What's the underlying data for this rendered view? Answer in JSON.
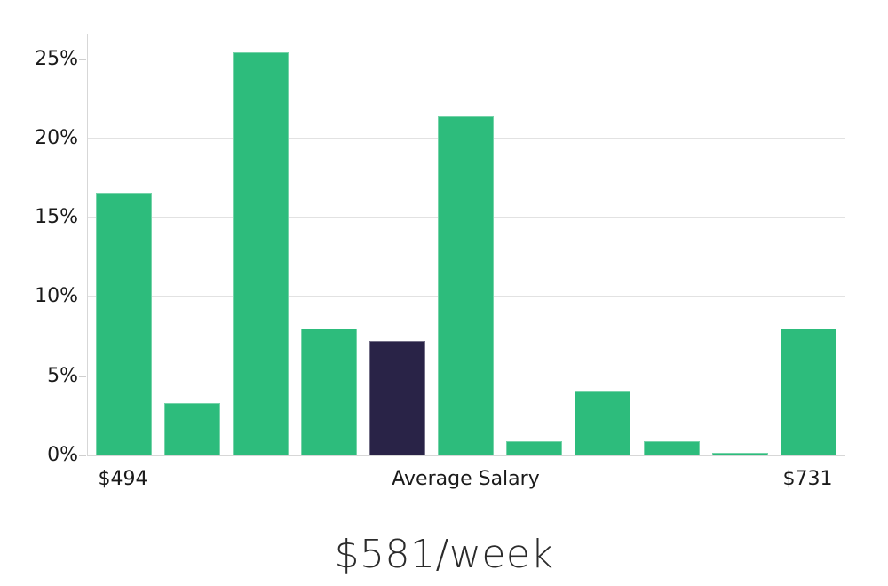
{
  "chart_data": {
    "type": "bar",
    "subtype": "histogram",
    "title": "$581/week",
    "xlabel": "",
    "ylabel": "",
    "grid": "horizontal",
    "legend": "none",
    "ylim": [
      0,
      26.6
    ],
    "yticks": [
      {
        "value": 0,
        "label": "0%"
      },
      {
        "value": 5,
        "label": "5%"
      },
      {
        "value": 10,
        "label": "10%"
      },
      {
        "value": 15,
        "label": "15%"
      },
      {
        "value": 20,
        "label": "20%"
      },
      {
        "value": 25,
        "label": "25%"
      }
    ],
    "xticks": [
      {
        "position": 0.0475,
        "label": "$494"
      },
      {
        "position": 0.5,
        "label": "Average Salary"
      },
      {
        "position": 0.9514,
        "label": "$731"
      }
    ],
    "values": [
      16.6,
      3.3,
      25.4,
      8.0,
      7.2,
      21.4,
      0.9,
      4.1,
      0.9,
      0.15,
      8.0
    ],
    "highlighted_bar_index": 4,
    "colors": {
      "bar": "#2dbc7c",
      "highlighted_bar": "#292347",
      "gridline": "#e2e2e2",
      "axis_line": "#d7d7d7",
      "tick_text": "#1a1a1a",
      "title_text": "#2b2b2b"
    }
  }
}
